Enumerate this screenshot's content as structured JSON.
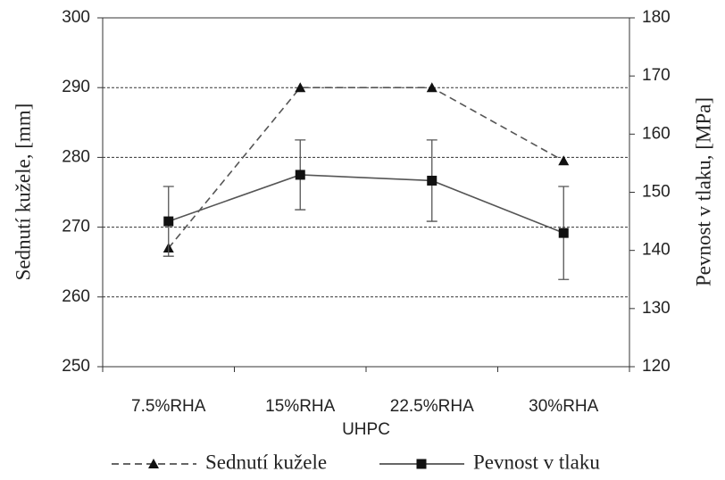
{
  "chart_data": {
    "type": "line",
    "xlabel": "UHPC",
    "ylabel": "Sednutí kužele, [mm]",
    "y2label": "Pevnost v tlaku, [MPa]",
    "categories": [
      "7.5%RHA",
      "15%RHA",
      "22.5%RHA",
      "30%RHA"
    ],
    "series": [
      {
        "name": "Sednutí kužele",
        "color": "#555555",
        "dash": true,
        "marker": "triangle",
        "values": [
          267,
          290,
          290,
          279.5
        ]
      },
      {
        "name": "Pevnost v tlaku",
        "color": "#555555",
        "dash": false,
        "marker": "square",
        "axis": "y2",
        "values": [
          145,
          153,
          152,
          143
        ],
        "errors": [
          6,
          6,
          7,
          8
        ]
      }
    ],
    "ylim": [
      250,
      300
    ],
    "yticks": [
      250,
      260,
      270,
      280,
      290,
      300
    ],
    "y2lim": [
      120,
      180
    ],
    "y2ticks": [
      120,
      130,
      140,
      150,
      160,
      170,
      180
    ],
    "grid": true,
    "legend": "bottom"
  }
}
